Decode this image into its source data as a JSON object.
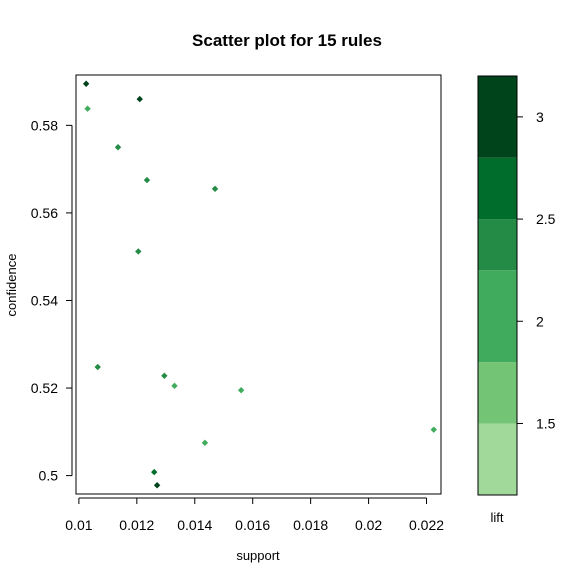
{
  "chart_data": {
    "type": "scatter",
    "title": "Scatter plot for 15 rules",
    "xlabel": "support",
    "ylabel": "confidence",
    "xlim": [
      0.0099,
      0.0225
    ],
    "ylim": [
      0.4958,
      0.5915
    ],
    "xticks": [
      0.01,
      0.012,
      0.014,
      0.016,
      0.018,
      0.02,
      0.022
    ],
    "xtick_labels": [
      "0.01",
      "0.012",
      "0.014",
      "0.016",
      "0.018",
      "0.02",
      "0.022"
    ],
    "yticks": [
      0.5,
      0.52,
      0.54,
      0.56,
      0.58
    ],
    "ytick_labels": [
      "0.5",
      "0.52",
      "0.54",
      "0.56",
      "0.58"
    ],
    "color_by": "lift",
    "colorbar": {
      "label": "lift",
      "range": [
        1.15,
        3.2
      ],
      "ticks": [
        1.5,
        2,
        2.5,
        3
      ],
      "tick_labels": [
        "1.5",
        "2",
        "2.5",
        "3"
      ],
      "bins": [
        {
          "from": 1.15,
          "to": 1.5,
          "color": "#a1d99b"
        },
        {
          "from": 1.5,
          "to": 1.8,
          "color": "#74c476"
        },
        {
          "from": 1.8,
          "to": 2.25,
          "color": "#41ab5d"
        },
        {
          "from": 2.25,
          "to": 2.5,
          "color": "#238b45"
        },
        {
          "from": 2.5,
          "to": 2.8,
          "color": "#006d2c"
        },
        {
          "from": 2.8,
          "to": 3.2,
          "color": "#00441b"
        }
      ]
    },
    "points": [
      {
        "support": 0.01025,
        "confidence": 0.5895,
        "lift": 3.0
      },
      {
        "support": 0.0103,
        "confidence": 0.5838,
        "lift": 2.1
      },
      {
        "support": 0.0121,
        "confidence": 0.586,
        "lift": 3.1
      },
      {
        "support": 0.01135,
        "confidence": 0.575,
        "lift": 2.4
      },
      {
        "support": 0.01235,
        "confidence": 0.5675,
        "lift": 2.3
      },
      {
        "support": 0.0147,
        "confidence": 0.5655,
        "lift": 2.3
      },
      {
        "support": 0.01205,
        "confidence": 0.5512,
        "lift": 2.4
      },
      {
        "support": 0.01065,
        "confidence": 0.5248,
        "lift": 2.4
      },
      {
        "support": 0.01295,
        "confidence": 0.5228,
        "lift": 2.4
      },
      {
        "support": 0.0133,
        "confidence": 0.5205,
        "lift": 2.1
      },
      {
        "support": 0.0156,
        "confidence": 0.5195,
        "lift": 2.0
      },
      {
        "support": 0.02225,
        "confidence": 0.5105,
        "lift": 2.1
      },
      {
        "support": 0.01435,
        "confidence": 0.5075,
        "lift": 2.2
      },
      {
        "support": 0.0126,
        "confidence": 0.5008,
        "lift": 2.7
      },
      {
        "support": 0.0127,
        "confidence": 0.4978,
        "lift": 2.8
      }
    ]
  }
}
